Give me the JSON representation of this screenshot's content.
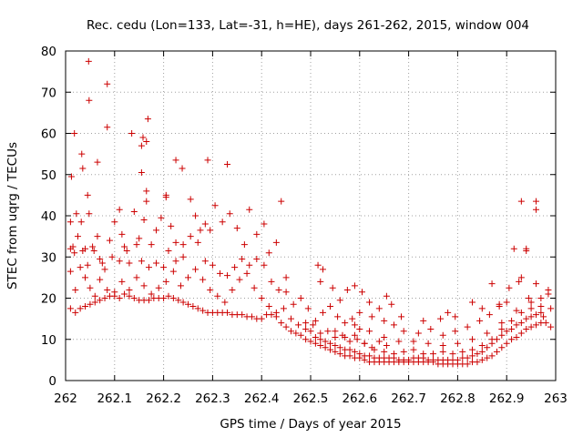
{
  "chart_data": {
    "type": "scatter",
    "title": "Rec. cedu (Lon=133, Lat=-31, h=HE), days 261-262, 2015, window 004",
    "xlabel": "GPS time / Days of year 2015",
    "ylabel": "STEC from uqrg / TECUs",
    "xlim": [
      262,
      263
    ],
    "ylim": [
      0,
      80
    ],
    "x_ticks": [
      262,
      262.1,
      262.2,
      262.3,
      262.4,
      262.5,
      262.6,
      262.7,
      262.8,
      262.9,
      263
    ],
    "x_tick_labels": [
      "262",
      "262.1",
      "262.2",
      "262.3",
      "262.4",
      "262.5",
      "262.6",
      "262.7",
      "262.8",
      "262.9",
      "263"
    ],
    "y_ticks": [
      0,
      10,
      20,
      30,
      40,
      50,
      60,
      70,
      80
    ],
    "y_tick_labels": [
      "0",
      "10",
      "20",
      "30",
      "40",
      "50",
      "60",
      "70",
      "80"
    ],
    "grid": true,
    "marker": "+",
    "color": "#cc0000",
    "points": [
      [
        262.012,
        49.5
      ],
      [
        262.018,
        60.0
      ],
      [
        262.033,
        55.0
      ],
      [
        262.035,
        51.5
      ],
      [
        262.045,
        45.0
      ],
      [
        262.048,
        68.0
      ],
      [
        262.047,
        77.5
      ],
      [
        262.065,
        53.0
      ],
      [
        262.085,
        72.0
      ],
      [
        262.085,
        61.5
      ],
      [
        262.135,
        60.0
      ],
      [
        262.155,
        57.0
      ],
      [
        262.158,
        59.0
      ],
      [
        262.168,
        63.5
      ],
      [
        262.165,
        58.0
      ],
      [
        262.155,
        50.5
      ],
      [
        262.165,
        46.0
      ],
      [
        262.165,
        43.5
      ],
      [
        262.205,
        45.0
      ],
      [
        262.225,
        53.5
      ],
      [
        262.238,
        51.5
      ],
      [
        262.29,
        53.5
      ],
      [
        262.33,
        52.5
      ],
      [
        262.44,
        43.5
      ],
      [
        262.515,
        28.0
      ],
      [
        262.525,
        27.0
      ],
      [
        262.01,
        38.5
      ],
      [
        262.015,
        32.5
      ],
      [
        262.022,
        40.5
      ],
      [
        262.032,
        38.5
      ],
      [
        262.04,
        32.0
      ],
      [
        262.048,
        40.5
      ],
      [
        262.058,
        31.5
      ],
      [
        262.065,
        35.0
      ],
      [
        262.075,
        28.5
      ],
      [
        262.09,
        34.0
      ],
      [
        262.1,
        38.5
      ],
      [
        262.11,
        41.5
      ],
      [
        262.115,
        35.5
      ],
      [
        262.125,
        31.5
      ],
      [
        262.14,
        41.0
      ],
      [
        262.15,
        34.5
      ],
      [
        262.16,
        39.0
      ],
      [
        262.175,
        33.0
      ],
      [
        262.185,
        36.5
      ],
      [
        262.195,
        39.5
      ],
      [
        262.205,
        44.5
      ],
      [
        262.215,
        37.5
      ],
      [
        262.225,
        33.5
      ],
      [
        262.24,
        30.0
      ],
      [
        262.255,
        44.0
      ],
      [
        262.265,
        40.0
      ],
      [
        262.275,
        36.5
      ],
      [
        262.285,
        38.0
      ],
      [
        262.295,
        36.5
      ],
      [
        262.305,
        42.5
      ],
      [
        262.32,
        38.5
      ],
      [
        262.335,
        40.5
      ],
      [
        262.35,
        37.0
      ],
      [
        262.365,
        33.0
      ],
      [
        262.375,
        41.5
      ],
      [
        262.39,
        35.5
      ],
      [
        262.405,
        38.0
      ],
      [
        262.415,
        31.0
      ],
      [
        262.43,
        33.5
      ],
      [
        262.45,
        25.0
      ],
      [
        262.01,
        32.0
      ],
      [
        262.018,
        31.0
      ],
      [
        262.025,
        35.0
      ],
      [
        262.035,
        31.5
      ],
      [
        262.045,
        28.0
      ],
      [
        262.055,
        32.5
      ],
      [
        262.07,
        29.5
      ],
      [
        262.08,
        27.0
      ],
      [
        262.095,
        30.0
      ],
      [
        262.11,
        29.0
      ],
      [
        262.12,
        32.5
      ],
      [
        262.13,
        28.5
      ],
      [
        262.145,
        33.0
      ],
      [
        262.155,
        29.0
      ],
      [
        262.17,
        27.5
      ],
      [
        262.185,
        28.5
      ],
      [
        262.2,
        27.5
      ],
      [
        262.21,
        31.5
      ],
      [
        262.225,
        29.0
      ],
      [
        262.24,
        33.0
      ],
      [
        262.255,
        35.0
      ],
      [
        262.27,
        33.5
      ],
      [
        262.285,
        29.0
      ],
      [
        262.3,
        28.0
      ],
      [
        262.315,
        26.0
      ],
      [
        262.33,
        25.5
      ],
      [
        262.345,
        27.5
      ],
      [
        262.36,
        29.5
      ],
      [
        262.375,
        28.0
      ],
      [
        262.39,
        29.5
      ],
      [
        262.405,
        28.0
      ],
      [
        262.42,
        24.0
      ],
      [
        262.435,
        22.0
      ],
      [
        262.45,
        21.5
      ],
      [
        262.465,
        18.5
      ],
      [
        262.48,
        20.0
      ],
      [
        262.495,
        17.5
      ],
      [
        262.51,
        14.5
      ],
      [
        262.525,
        16.5
      ],
      [
        262.54,
        18.0
      ],
      [
        262.555,
        15.5
      ],
      [
        262.57,
        14.0
      ],
      [
        262.585,
        15.0
      ],
      [
        262.6,
        12.5
      ],
      [
        262.01,
        26.5
      ],
      [
        262.02,
        22.0
      ],
      [
        262.03,
        27.5
      ],
      [
        262.04,
        25.0
      ],
      [
        262.05,
        22.5
      ],
      [
        262.06,
        20.5
      ],
      [
        262.07,
        24.5
      ],
      [
        262.085,
        22.0
      ],
      [
        262.1,
        21.5
      ],
      [
        262.115,
        24.0
      ],
      [
        262.13,
        22.0
      ],
      [
        262.145,
        25.0
      ],
      [
        262.16,
        23.0
      ],
      [
        262.175,
        21.0
      ],
      [
        262.19,
        22.5
      ],
      [
        262.205,
        24.0
      ],
      [
        262.22,
        26.5
      ],
      [
        262.235,
        23.0
      ],
      [
        262.25,
        25.0
      ],
      [
        262.265,
        27.0
      ],
      [
        262.28,
        24.5
      ],
      [
        262.295,
        22.0
      ],
      [
        262.31,
        20.5
      ],
      [
        262.325,
        19.0
      ],
      [
        262.34,
        22.0
      ],
      [
        262.355,
        24.5
      ],
      [
        262.37,
        26.0
      ],
      [
        262.385,
        22.5
      ],
      [
        262.4,
        20.0
      ],
      [
        262.415,
        18.0
      ],
      [
        262.43,
        16.5
      ],
      [
        262.445,
        17.5
      ],
      [
        262.46,
        15.0
      ],
      [
        262.475,
        13.5
      ],
      [
        262.49,
        12.5
      ],
      [
        262.505,
        13.5
      ],
      [
        262.52,
        11.5
      ],
      [
        262.535,
        12.0
      ],
      [
        262.55,
        10.5
      ],
      [
        262.565,
        11.0
      ],
      [
        262.58,
        9.5
      ],
      [
        262.595,
        10.0
      ],
      [
        262.61,
        9.0
      ],
      [
        262.625,
        8.0
      ],
      [
        262.64,
        9.5
      ],
      [
        262.655,
        8.5
      ],
      [
        262.01,
        17.5
      ],
      [
        262.02,
        16.5
      ],
      [
        262.03,
        17.5
      ],
      [
        262.04,
        18.0
      ],
      [
        262.05,
        18.5
      ],
      [
        262.06,
        19.0
      ],
      [
        262.07,
        19.5
      ],
      [
        262.08,
        20.0
      ],
      [
        262.09,
        20.5
      ],
      [
        262.1,
        20.5
      ],
      [
        262.11,
        20.0
      ],
      [
        262.12,
        21.0
      ],
      [
        262.13,
        20.5
      ],
      [
        262.14,
        20.0
      ],
      [
        262.15,
        19.5
      ],
      [
        262.16,
        19.5
      ],
      [
        262.17,
        19.5
      ],
      [
        262.18,
        20.0
      ],
      [
        262.19,
        20.0
      ],
      [
        262.2,
        20.0
      ],
      [
        262.21,
        20.5
      ],
      [
        262.22,
        20.0
      ],
      [
        262.23,
        19.5
      ],
      [
        262.24,
        19.0
      ],
      [
        262.25,
        18.5
      ],
      [
        262.26,
        18.0
      ],
      [
        262.27,
        17.5
      ],
      [
        262.28,
        17.0
      ],
      [
        262.29,
        16.5
      ],
      [
        262.3,
        16.5
      ],
      [
        262.31,
        16.5
      ],
      [
        262.32,
        16.5
      ],
      [
        262.33,
        16.5
      ],
      [
        262.34,
        16.0
      ],
      [
        262.35,
        16.0
      ],
      [
        262.36,
        16.0
      ],
      [
        262.37,
        15.5
      ],
      [
        262.38,
        15.5
      ],
      [
        262.39,
        15.0
      ],
      [
        262.4,
        15.0
      ],
      [
        262.41,
        16.0
      ],
      [
        262.42,
        16.0
      ],
      [
        262.43,
        15.5
      ],
      [
        262.44,
        14.0
      ],
      [
        262.45,
        13.0
      ],
      [
        262.46,
        12.0
      ],
      [
        262.47,
        11.5
      ],
      [
        262.48,
        11.0
      ],
      [
        262.49,
        10.0
      ],
      [
        262.5,
        9.5
      ],
      [
        262.51,
        9.0
      ],
      [
        262.52,
        8.5
      ],
      [
        262.53,
        8.0
      ],
      [
        262.54,
        7.5
      ],
      [
        262.55,
        7.0
      ],
      [
        262.56,
        6.5
      ],
      [
        262.57,
        6.0
      ],
      [
        262.58,
        6.0
      ],
      [
        262.59,
        5.5
      ],
      [
        262.6,
        5.5
      ],
      [
        262.61,
        5.0
      ],
      [
        262.62,
        4.5
      ],
      [
        262.63,
        4.5
      ],
      [
        262.64,
        4.5
      ],
      [
        262.65,
        4.5
      ],
      [
        262.66,
        4.5
      ],
      [
        262.67,
        4.5
      ],
      [
        262.68,
        4.5
      ],
      [
        262.69,
        4.5
      ],
      [
        262.7,
        4.5
      ],
      [
        262.71,
        4.5
      ],
      [
        262.72,
        4.5
      ],
      [
        262.73,
        4.5
      ],
      [
        262.74,
        4.5
      ],
      [
        262.75,
        4.5
      ],
      [
        262.76,
        4.0
      ],
      [
        262.77,
        4.0
      ],
      [
        262.78,
        4.0
      ],
      [
        262.79,
        4.0
      ],
      [
        262.8,
        4.0
      ],
      [
        262.81,
        4.0
      ],
      [
        262.82,
        4.0
      ],
      [
        262.83,
        4.5
      ],
      [
        262.84,
        4.5
      ],
      [
        262.85,
        5.0
      ],
      [
        262.86,
        5.5
      ],
      [
        262.87,
        6.0
      ],
      [
        262.88,
        7.0
      ],
      [
        262.89,
        8.0
      ],
      [
        262.9,
        9.0
      ],
      [
        262.91,
        10.0
      ],
      [
        262.92,
        10.5
      ],
      [
        262.93,
        11.5
      ],
      [
        262.94,
        12.5
      ],
      [
        262.95,
        13.0
      ],
      [
        262.96,
        13.5
      ],
      [
        262.97,
        14.0
      ],
      [
        262.98,
        14.0
      ],
      [
        262.99,
        13.0
      ],
      [
        262.49,
        14.0
      ],
      [
        262.5,
        12.0
      ],
      [
        262.51,
        10.5
      ],
      [
        262.52,
        10.0
      ],
      [
        262.53,
        9.5
      ],
      [
        262.54,
        9.0
      ],
      [
        262.55,
        8.5
      ],
      [
        262.56,
        8.0
      ],
      [
        262.57,
        7.5
      ],
      [
        262.58,
        7.5
      ],
      [
        262.59,
        7.0
      ],
      [
        262.6,
        6.5
      ],
      [
        262.61,
        6.0
      ],
      [
        262.62,
        6.0
      ],
      [
        262.63,
        5.5
      ],
      [
        262.64,
        5.5
      ],
      [
        262.65,
        5.5
      ],
      [
        262.66,
        5.5
      ],
      [
        262.67,
        5.5
      ],
      [
        262.68,
        5.0
      ],
      [
        262.69,
        5.0
      ],
      [
        262.7,
        5.0
      ],
      [
        262.71,
        5.5
      ],
      [
        262.72,
        5.5
      ],
      [
        262.73,
        5.5
      ],
      [
        262.74,
        5.0
      ],
      [
        262.75,
        5.0
      ],
      [
        262.76,
        5.0
      ],
      [
        262.77,
        5.0
      ],
      [
        262.78,
        5.0
      ],
      [
        262.79,
        5.0
      ],
      [
        262.8,
        5.0
      ],
      [
        262.81,
        5.5
      ],
      [
        262.82,
        5.5
      ],
      [
        262.83,
        6.0
      ],
      [
        262.84,
        6.5
      ],
      [
        262.85,
        7.0
      ],
      [
        262.86,
        8.0
      ],
      [
        262.87,
        9.0
      ],
      [
        262.88,
        10.0
      ],
      [
        262.89,
        11.0
      ],
      [
        262.9,
        12.0
      ],
      [
        262.91,
        12.5
      ],
      [
        262.92,
        13.5
      ],
      [
        262.93,
        14.0
      ],
      [
        262.94,
        15.0
      ],
      [
        262.95,
        15.5
      ],
      [
        262.96,
        16.0
      ],
      [
        262.97,
        16.5
      ],
      [
        262.55,
        12.0
      ],
      [
        262.57,
        10.5
      ],
      [
        262.59,
        11.0
      ],
      [
        262.61,
        9.0
      ],
      [
        262.63,
        7.5
      ],
      [
        262.65,
        7.0
      ],
      [
        262.67,
        6.5
      ],
      [
        262.69,
        7.0
      ],
      [
        262.71,
        7.5
      ],
      [
        262.73,
        6.5
      ],
      [
        262.75,
        6.5
      ],
      [
        262.77,
        7.0
      ],
      [
        262.79,
        6.5
      ],
      [
        262.81,
        7.0
      ],
      [
        262.83,
        7.5
      ],
      [
        262.85,
        8.5
      ],
      [
        262.87,
        10.0
      ],
      [
        262.89,
        12.5
      ],
      [
        262.91,
        14.5
      ],
      [
        262.93,
        16.5
      ],
      [
        262.95,
        17.5
      ],
      [
        262.97,
        18.0
      ],
      [
        262.59,
        13.5
      ],
      [
        262.62,
        12.0
      ],
      [
        262.65,
        10.5
      ],
      [
        262.68,
        9.5
      ],
      [
        262.71,
        9.5
      ],
      [
        262.74,
        9.0
      ],
      [
        262.77,
        8.5
      ],
      [
        262.8,
        9.0
      ],
      [
        262.83,
        10.0
      ],
      [
        262.86,
        11.5
      ],
      [
        262.89,
        14.0
      ],
      [
        262.92,
        17.0
      ],
      [
        262.95,
        19.0
      ],
      [
        262.6,
        16.5
      ],
      [
        262.625,
        15.5
      ],
      [
        262.65,
        14.5
      ],
      [
        262.67,
        13.5
      ],
      [
        262.69,
        12.0
      ],
      [
        262.72,
        11.5
      ],
      [
        262.745,
        12.5
      ],
      [
        262.77,
        11.0
      ],
      [
        262.795,
        12.0
      ],
      [
        262.82,
        13.0
      ],
      [
        262.845,
        14.5
      ],
      [
        262.865,
        16.0
      ],
      [
        262.885,
        18.0
      ],
      [
        262.9,
        19.0
      ],
      [
        262.52,
        24.0
      ],
      [
        262.545,
        22.5
      ],
      [
        262.56,
        19.5
      ],
      [
        262.575,
        22.0
      ],
      [
        262.59,
        23.0
      ],
      [
        262.605,
        21.5
      ],
      [
        262.62,
        19.0
      ],
      [
        262.64,
        17.5
      ],
      [
        262.655,
        20.5
      ],
      [
        262.665,
        18.5
      ],
      [
        262.685,
        15.5
      ],
      [
        262.73,
        14.5
      ],
      [
        262.765,
        15.0
      ],
      [
        262.78,
        16.5
      ],
      [
        262.795,
        15.5
      ],
      [
        262.83,
        19.0
      ],
      [
        262.85,
        17.5
      ],
      [
        262.87,
        23.5
      ],
      [
        262.885,
        18.5
      ],
      [
        262.905,
        22.5
      ],
      [
        262.925,
        24.0
      ],
      [
        262.93,
        25.0
      ],
      [
        262.945,
        20.0
      ],
      [
        262.96,
        23.5
      ],
      [
        262.985,
        21.0
      ],
      [
        262.915,
        32.0
      ],
      [
        262.94,
        31.5
      ],
      [
        262.94,
        32.0
      ],
      [
        262.93,
        43.5
      ],
      [
        262.96,
        43.5
      ],
      [
        262.96,
        41.5
      ],
      [
        262.985,
        22.0
      ],
      [
        262.99,
        17.5
      ],
      [
        262.975,
        15.5
      ],
      [
        262.97,
        20.0
      ]
    ]
  }
}
